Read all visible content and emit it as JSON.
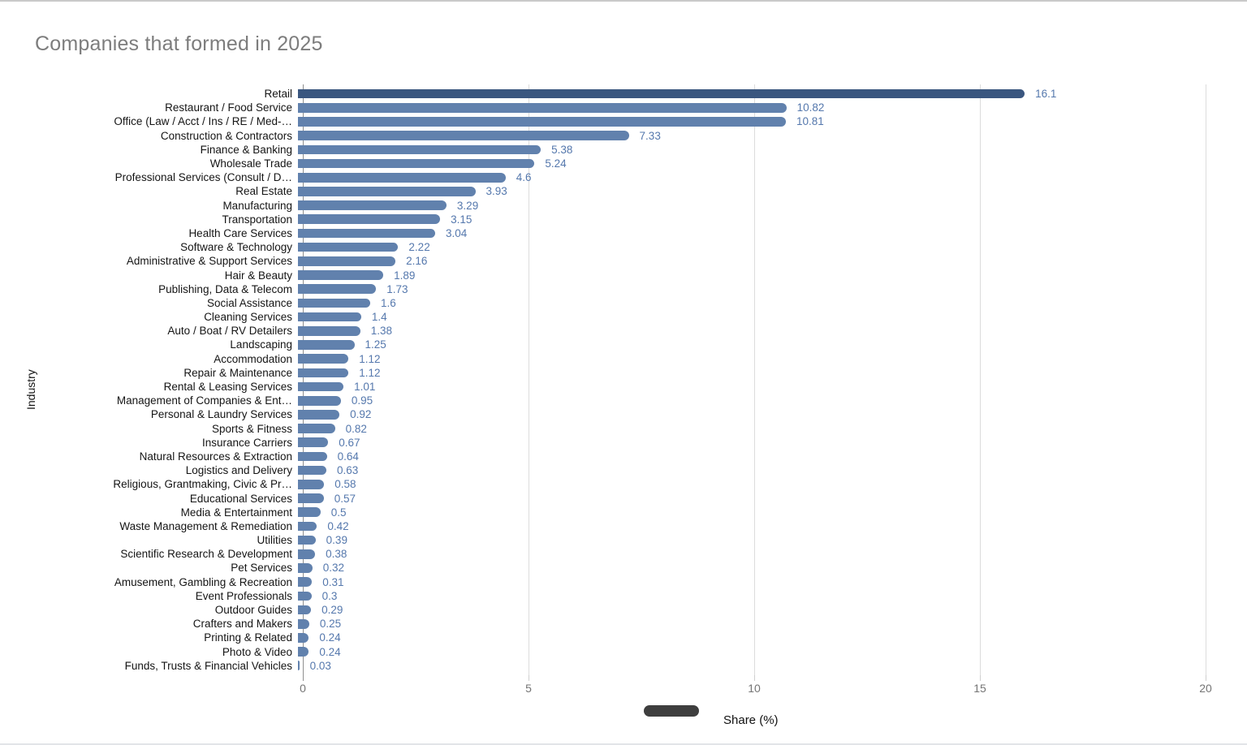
{
  "title": "Companies that formed in 2025",
  "colors": {
    "bar_default": "#6181ad",
    "bar_first": "#3a567f",
    "value_label": "#5578ad",
    "title_text": "#7d7d7d",
    "axis_tick_text": "#757575",
    "legend_pill": "#3e3e3e"
  },
  "legend": {
    "label": "Share (%)"
  },
  "chart_data": {
    "type": "bar",
    "orientation": "horizontal",
    "title": "Companies that formed in 2025",
    "xlabel": "Share (%)",
    "ylabel": "Industry",
    "xlim": [
      0,
      20
    ],
    "x_ticks": [
      0,
      5,
      10,
      15,
      20
    ],
    "grid": "vertical-light",
    "legend_position": "bottom",
    "categories": [
      "Retail",
      "Restaurant / Food Service",
      "Office (Law / Acct / Ins / RE / Med-…",
      "Construction & Contractors",
      "Finance & Banking",
      "Wholesale Trade",
      "Professional Services (Consult / D…",
      "Real Estate",
      "Manufacturing",
      "Transportation",
      "Health Care Services",
      "Software & Technology",
      "Administrative & Support Services",
      "Hair & Beauty",
      "Publishing, Data & Telecom",
      "Social Assistance",
      "Cleaning Services",
      "Auto / Boat / RV Detailers",
      "Landscaping",
      "Accommodation",
      "Repair & Maintenance",
      "Rental & Leasing Services",
      "Management of Companies & Ent…",
      "Personal & Laundry Services",
      "Sports & Fitness",
      "Insurance Carriers",
      "Natural Resources & Extraction",
      "Logistics and Delivery",
      "Religious, Grantmaking, Civic & Pr…",
      "Educational Services",
      "Media & Entertainment",
      "Waste Management & Remediation",
      "Utilities",
      "Scientific Research & Development",
      "Pet Services",
      "Amusement, Gambling & Recreation",
      "Event Professionals",
      "Outdoor Guides",
      "Crafters and Makers",
      "Printing & Related",
      "Photo & Video",
      "Funds, Trusts & Financial Vehicles"
    ],
    "values": [
      16.1,
      10.82,
      10.81,
      7.33,
      5.38,
      5.24,
      4.6,
      3.93,
      3.29,
      3.15,
      3.04,
      2.22,
      2.16,
      1.89,
      1.73,
      1.6,
      1.4,
      1.38,
      1.25,
      1.12,
      1.12,
      1.01,
      0.95,
      0.92,
      0.82,
      0.67,
      0.64,
      0.63,
      0.58,
      0.57,
      0.5,
      0.42,
      0.39,
      0.38,
      0.32,
      0.31,
      0.3,
      0.29,
      0.25,
      0.24,
      0.24,
      0.03
    ],
    "display_values": [
      "16.1",
      "10.82",
      "10.81",
      "7.33",
      "5.38",
      "5.24",
      "4.6",
      "3.93",
      "3.29",
      "3.15",
      "3.04",
      "2.22",
      "2.16",
      "1.89",
      "1.73",
      "1.6",
      "1.4",
      "1.38",
      "1.25",
      "1.12",
      "1.12",
      "1.01",
      "0.95",
      "0.92",
      "0.82",
      "0.67",
      "0.64",
      "0.63",
      "0.58",
      "0.57",
      "0.5",
      "0.42",
      "0.39",
      "0.38",
      "0.32",
      "0.31",
      "0.3",
      "0.29",
      "0.25",
      "0.24",
      "0.24",
      "0.03"
    ],
    "series": [
      {
        "name": "Share (%)",
        "values": [
          16.1,
          10.82,
          10.81,
          7.33,
          5.38,
          5.24,
          4.6,
          3.93,
          3.29,
          3.15,
          3.04,
          2.22,
          2.16,
          1.89,
          1.73,
          1.6,
          1.4,
          1.38,
          1.25,
          1.12,
          1.12,
          1.01,
          0.95,
          0.92,
          0.82,
          0.67,
          0.64,
          0.63,
          0.58,
          0.57,
          0.5,
          0.42,
          0.39,
          0.38,
          0.32,
          0.31,
          0.3,
          0.29,
          0.25,
          0.24,
          0.24,
          0.03
        ]
      }
    ]
  }
}
